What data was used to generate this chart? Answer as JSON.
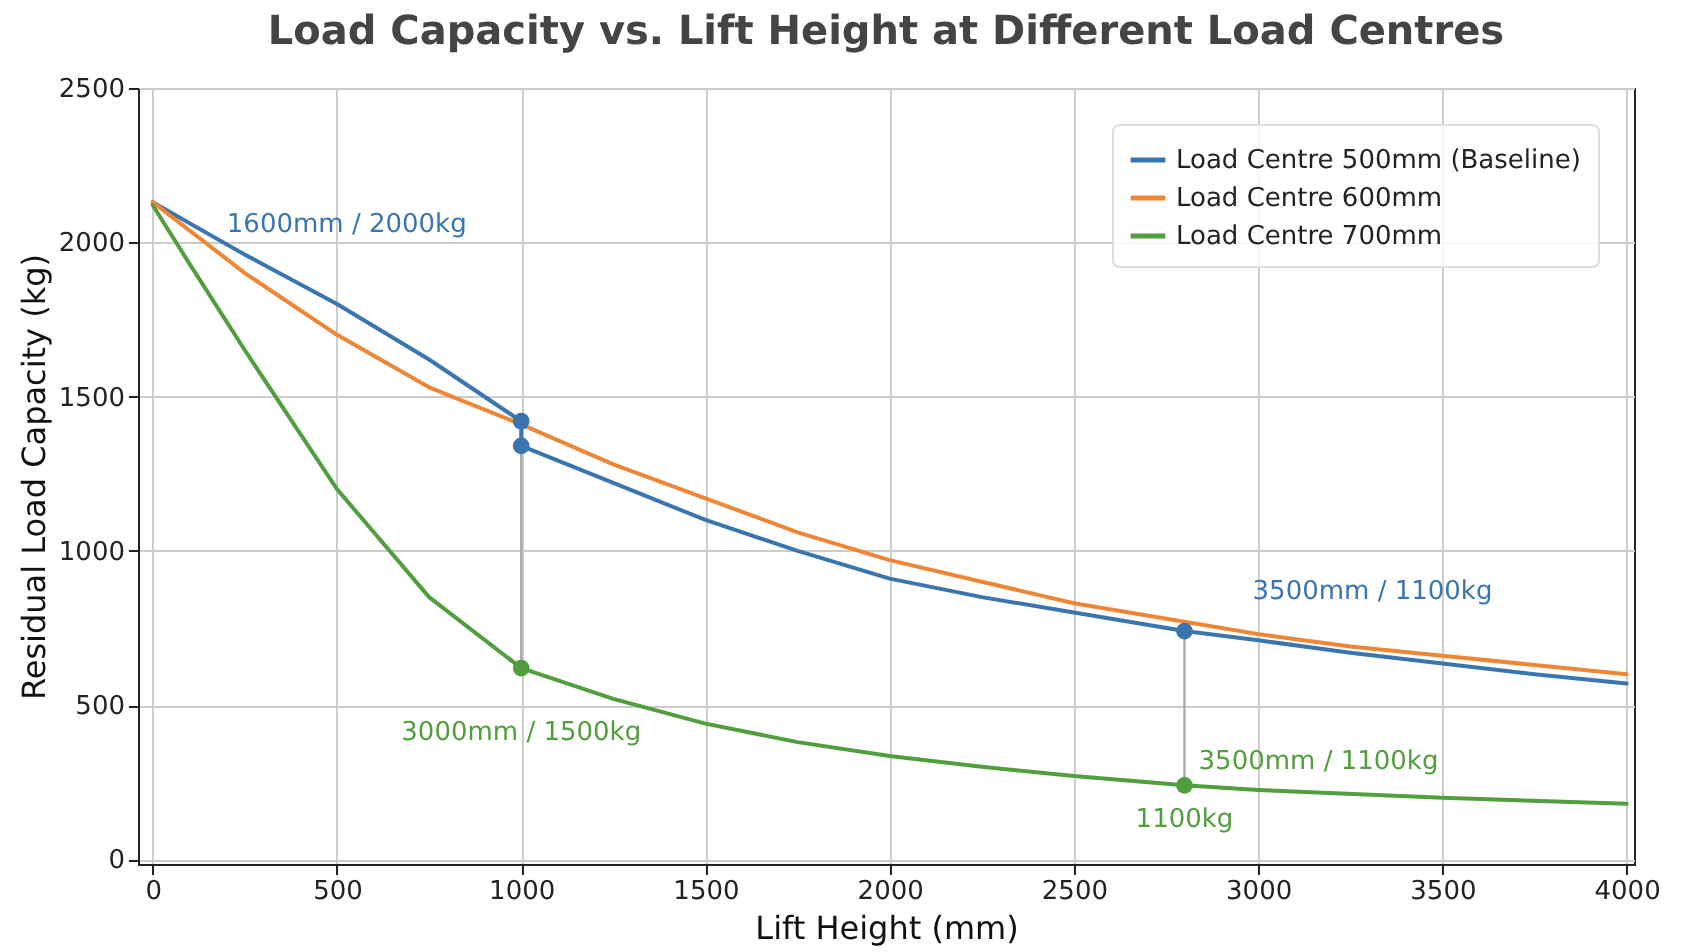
{
  "chart_data": {
    "type": "line",
    "title": "Load Capacity vs. Lift Height at Different Load Centres",
    "xlabel": "Lift Height (mm)",
    "ylabel": "Residual Load Capacity (kg)",
    "xlim": [
      -40,
      4020
    ],
    "ylim": [
      -15,
      2500
    ],
    "xticks": [
      0,
      500,
      1000,
      1500,
      2000,
      2500,
      3000,
      3500,
      4000
    ],
    "yticks": [
      0,
      500,
      1000,
      1500,
      2000,
      2500
    ],
    "grid": true,
    "legend": "top right",
    "series": [
      {
        "name": "Load Centre 500mm (Baseline)",
        "type": "line",
        "color": "#3b75af",
        "x": [
          0,
          250,
          500,
          750,
          1000,
          1000,
          1250,
          1500,
          1750,
          2000,
          2250,
          2500,
          2800,
          3000,
          3250,
          3500,
          3750,
          4000
        ],
        "values": [
          2130,
          1960,
          1800,
          1620,
          1420,
          1340,
          1220,
          1100,
          1000,
          910,
          850,
          800,
          740,
          710,
          670,
          635,
          600,
          570
        ]
      },
      {
        "name": "Load Centre 600mm",
        "type": "line",
        "color": "#ef8636",
        "x": [
          0,
          250,
          500,
          750,
          1000,
          1250,
          1500,
          1750,
          2000,
          2250,
          2500,
          2800,
          3000,
          3250,
          3500,
          3750,
          4000
        ],
        "values": [
          2130,
          1900,
          1700,
          1530,
          1410,
          1280,
          1170,
          1060,
          970,
          900,
          830,
          770,
          730,
          690,
          660,
          630,
          600
        ]
      },
      {
        "name": "Load Centre 700mm",
        "type": "line",
        "color": "#519e3e",
        "x": [
          0,
          100,
          250,
          500,
          750,
          1000,
          1250,
          1500,
          1750,
          2000,
          2250,
          2500,
          2800,
          3000,
          3500,
          4000
        ],
        "values": [
          2120,
          1930,
          1650,
          1200,
          850,
          620,
          520,
          440,
          380,
          335,
          300,
          270,
          240,
          225,
          200,
          180
        ]
      },
      {
        "type": "line",
        "color": "#aaaaaa",
        "x": [
          1000,
          1000
        ],
        "values": [
          1340,
          620
        ]
      },
      {
        "type": "line",
        "color": "#aaaaaa",
        "x": [
          2800,
          2800
        ],
        "values": [
          740,
          240
        ]
      },
      {
        "type": "scatter",
        "color": "#3b75af",
        "x": [
          1000,
          1000,
          2800
        ],
        "values": [
          1420,
          1340,
          740
        ]
      },
      {
        "type": "scatter",
        "color": "#519e3e",
        "x": [
          1000,
          2800
        ],
        "values": [
          620,
          240
        ]
      }
    ],
    "annotations": [
      {
        "text": "1600mm / 2000kg",
        "x": 0,
        "y": 2130
      },
      {
        "text": "3000mm / 1500kg",
        "x": 1000,
        "y": 620
      },
      {
        "text": "3500mm / 1100kg",
        "x": 2800,
        "y": 740
      },
      {
        "text": "3500mm / 1100kg",
        "x": 2800,
        "y": 240
      },
      {
        "text": "1100kg",
        "x": 2800,
        "y": 240
      }
    ]
  }
}
